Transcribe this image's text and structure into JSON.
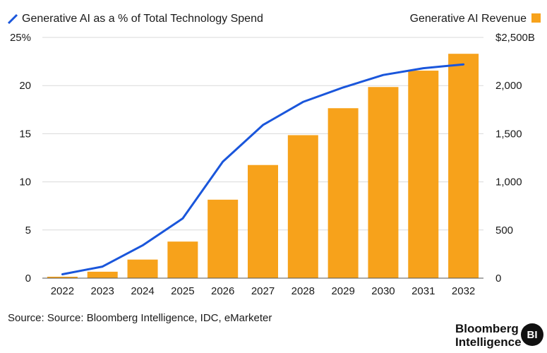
{
  "chart_data": {
    "type": "bar",
    "categories": [
      "2022",
      "2023",
      "2024",
      "2025",
      "2026",
      "2027",
      "2028",
      "2029",
      "2030",
      "2031",
      "2032"
    ],
    "series": [
      {
        "name": "Generative AI Revenue",
        "kind": "bar",
        "axis": "right",
        "color": "#f7a21b",
        "values": [
          15,
          67,
          193,
          380,
          815,
          1175,
          1485,
          1765,
          1985,
          2155,
          2330
        ]
      },
      {
        "name": "Generative AI as a % of Total Technology Spend",
        "kind": "line",
        "axis": "left",
        "color": "#1a56db",
        "values": [
          0.4,
          1.2,
          3.4,
          6.2,
          12.1,
          15.9,
          18.3,
          19.8,
          21.1,
          21.8,
          22.2
        ]
      }
    ],
    "y_left": {
      "ylim": [
        0,
        25
      ],
      "ticks": [
        "25%",
        "20",
        "15",
        "10",
        "5",
        "0"
      ],
      "tick_values": [
        25,
        20,
        15,
        10,
        5,
        0
      ]
    },
    "y_right": {
      "ylim": [
        0,
        2500
      ],
      "ticks": [
        "$2,500B",
        "2,000",
        "1,500",
        "1,000",
        "500",
        "0"
      ],
      "tick_values": [
        2500,
        2000,
        1500,
        1000,
        500,
        0
      ]
    },
    "grid": true,
    "legend": [
      "top-left line entry",
      "top-right bar entry"
    ]
  },
  "legend": {
    "line_label": "Generative AI as a % of Total Technology Spend",
    "bar_label": "Generative AI Revenue"
  },
  "source": "Source: Source: Bloomberg Intelligence, IDC, eMarketer",
  "brand": {
    "line1": "Bloomberg",
    "line2": "Intelligence",
    "badge": "BI"
  },
  "colors": {
    "bar": "#f7a21b",
    "line": "#1a56db",
    "grid": "#d9d9d9",
    "baseline": "#555555"
  }
}
